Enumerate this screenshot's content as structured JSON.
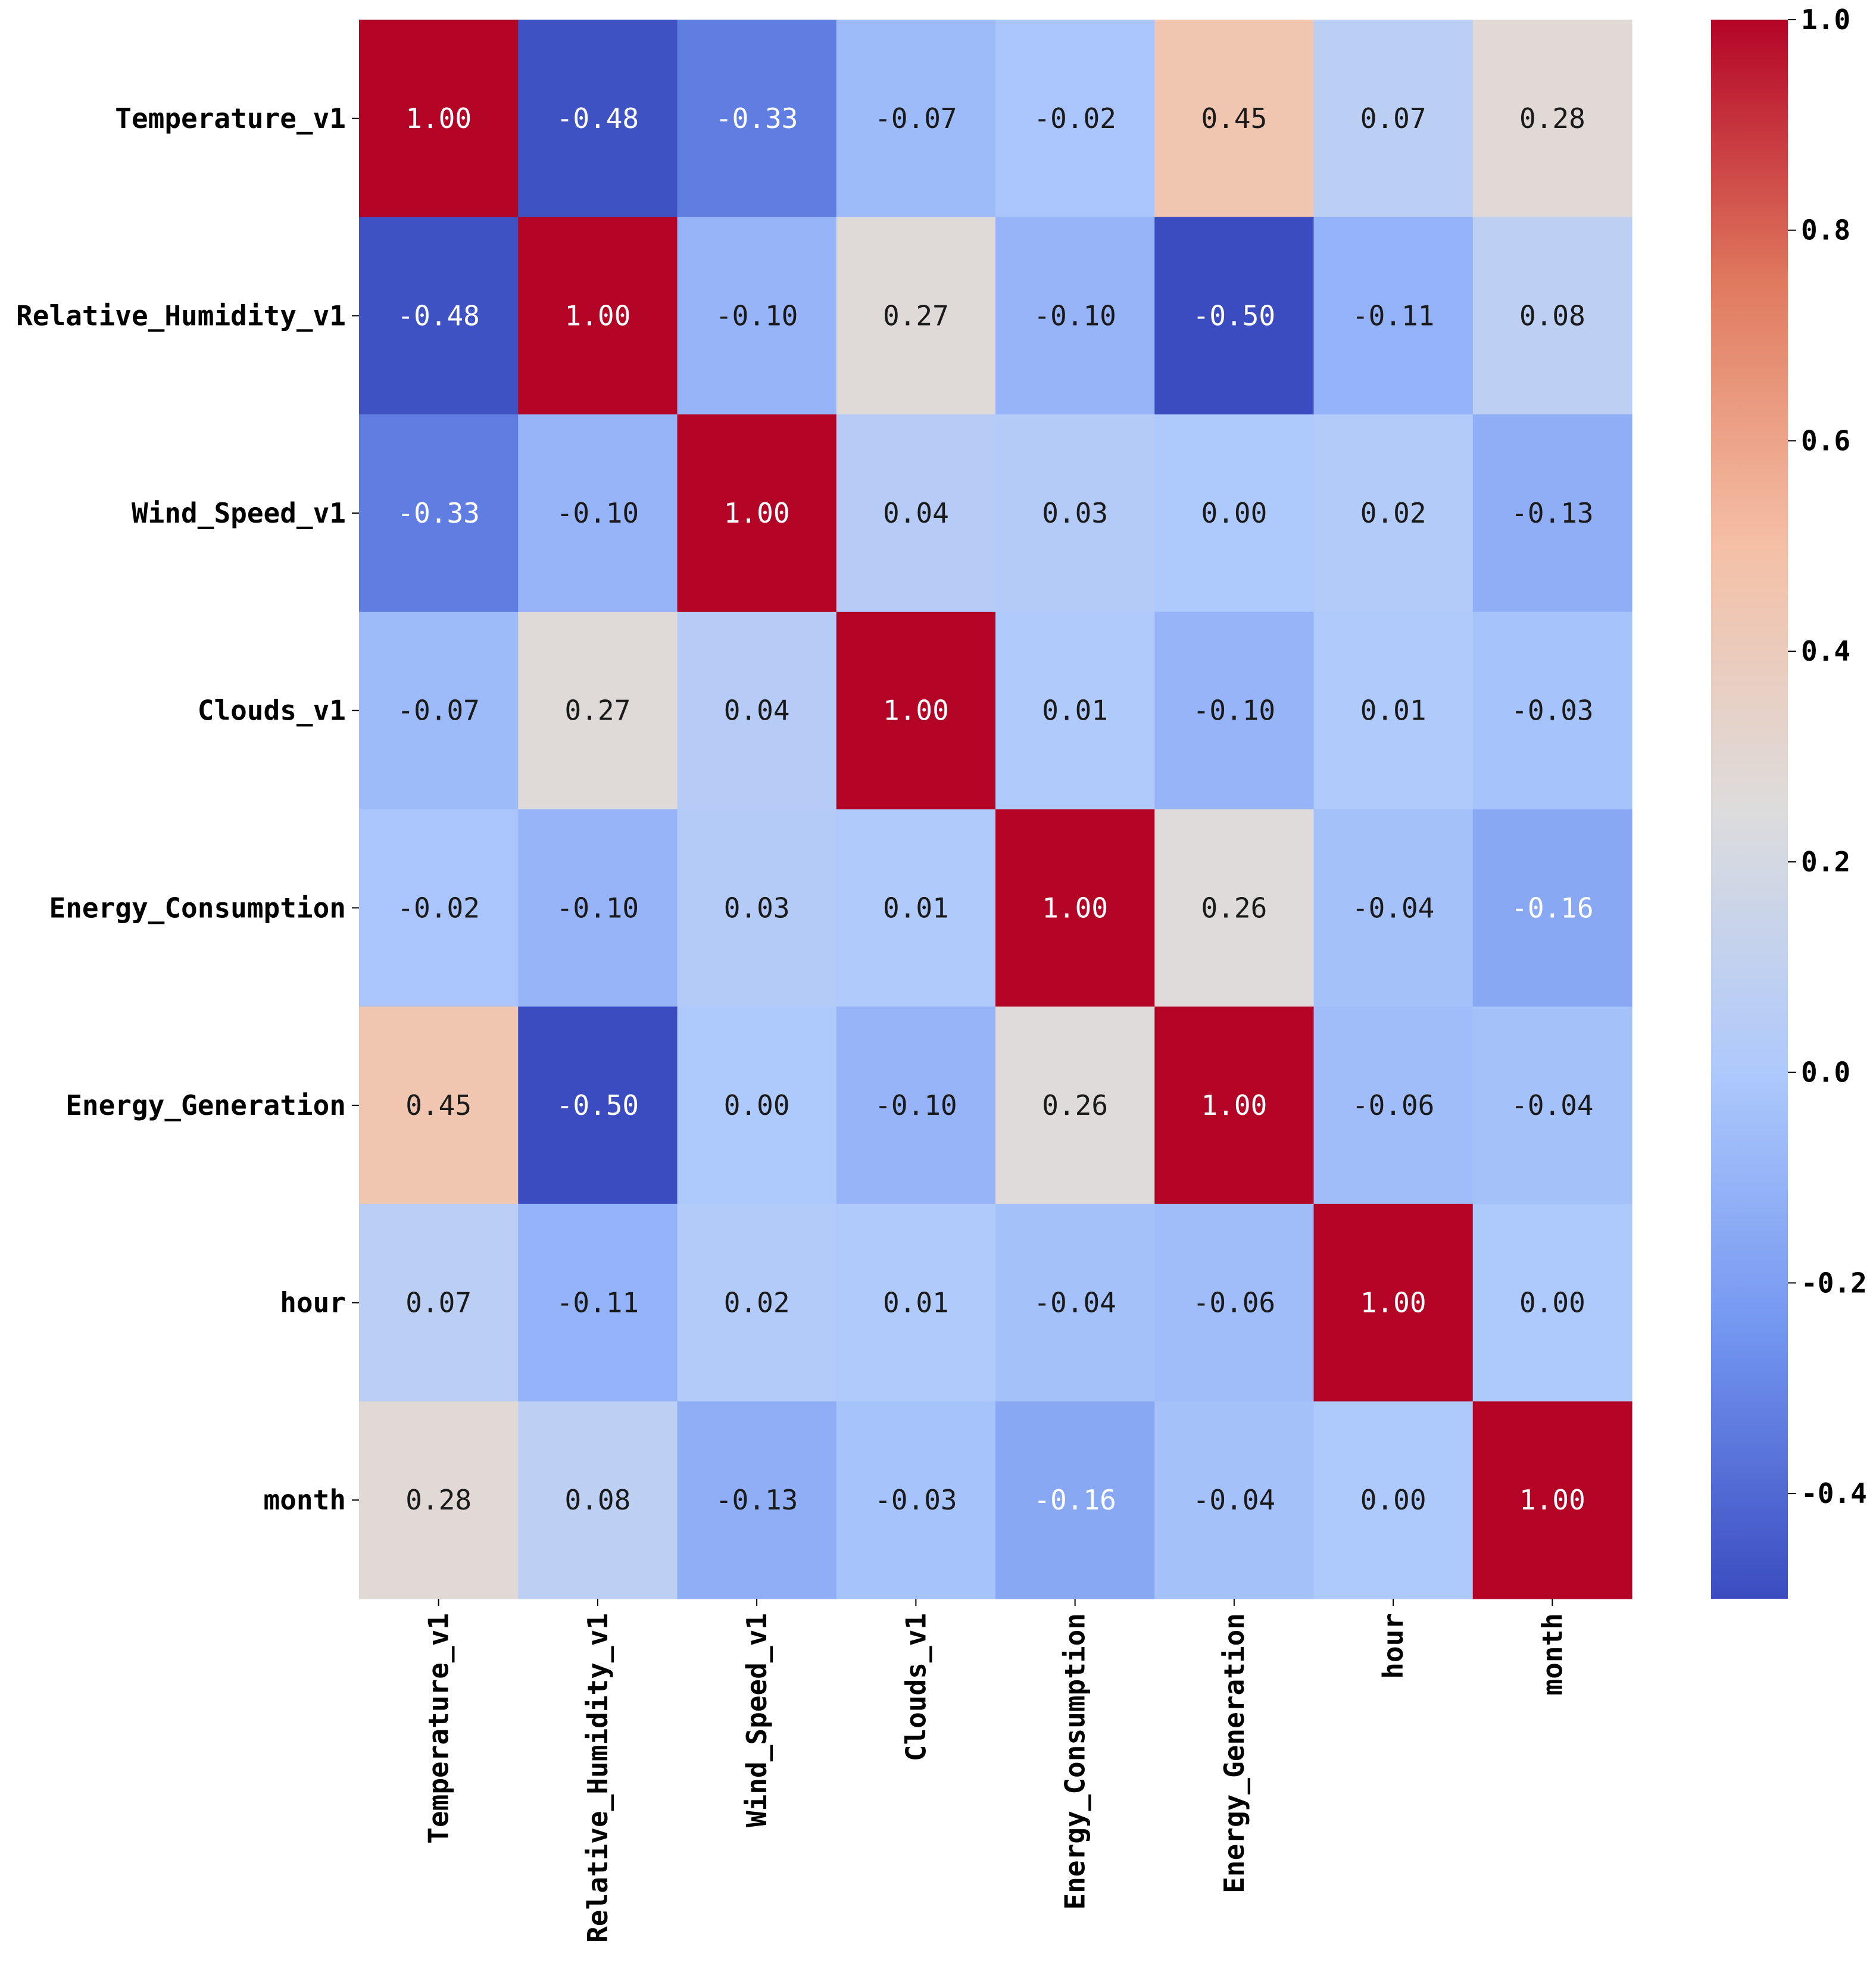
{
  "chart_data": {
    "type": "heatmap",
    "title": "",
    "xlabel": "",
    "ylabel": "",
    "row_labels": [
      "Temperature_v1",
      "Relative_Humidity_v1",
      "Wind_Speed_v1",
      "Clouds_v1",
      "Energy_Consumption",
      "Energy_Generation",
      "hour",
      "month"
    ],
    "col_labels": [
      "Temperature_v1",
      "Relative_Humidity_v1",
      "Wind_Speed_v1",
      "Clouds_v1",
      "Energy_Consumption",
      "Energy_Generation",
      "hour",
      "month"
    ],
    "values": [
      [
        1.0,
        -0.48,
        -0.33,
        -0.07,
        -0.02,
        0.45,
        0.07,
        0.28
      ],
      [
        -0.48,
        1.0,
        -0.1,
        0.27,
        -0.1,
        -0.5,
        -0.11,
        0.08
      ],
      [
        -0.33,
        -0.1,
        1.0,
        0.04,
        0.03,
        0.0,
        0.02,
        -0.13
      ],
      [
        -0.07,
        0.27,
        0.04,
        1.0,
        0.01,
        -0.1,
        0.01,
        -0.03
      ],
      [
        -0.02,
        -0.1,
        0.03,
        0.01,
        1.0,
        0.26,
        -0.04,
        -0.16
      ],
      [
        0.45,
        -0.5,
        0.0,
        -0.1,
        0.26,
        1.0,
        -0.06,
        -0.04
      ],
      [
        0.07,
        -0.11,
        0.02,
        0.01,
        -0.04,
        -0.06,
        1.0,
        0.0
      ],
      [
        0.28,
        0.08,
        -0.13,
        -0.03,
        -0.16,
        -0.04,
        0.0,
        1.0
      ]
    ],
    "cell_labels": [
      [
        "1.00",
        "-0.48",
        "-0.33",
        "-0.07",
        "-0.02",
        "0.45",
        "0.07",
        "0.28"
      ],
      [
        "-0.48",
        "1.00",
        "-0.10",
        "0.27",
        "-0.10",
        "-0.50",
        "-0.11",
        "0.08"
      ],
      [
        "-0.33",
        "-0.10",
        "1.00",
        "0.04",
        "0.03",
        "0.00",
        "0.02",
        "-0.13"
      ],
      [
        "-0.07",
        "0.27",
        "0.04",
        "1.00",
        "0.01",
        "-0.10",
        "0.01",
        "-0.03"
      ],
      [
        "-0.02",
        "-0.10",
        "0.03",
        "0.01",
        "1.00",
        "0.26",
        "-0.04",
        "-0.16"
      ],
      [
        "0.45",
        "-0.50",
        "0.00",
        "-0.10",
        "0.26",
        "1.00",
        "-0.06",
        "-0.04"
      ],
      [
        "0.07",
        "-0.11",
        "0.02",
        "0.01",
        "-0.04",
        "-0.06",
        "1.00",
        "0.00"
      ],
      [
        "0.28",
        "0.08",
        "-0.13",
        "-0.03",
        "-0.16",
        "-0.04",
        "0.00",
        "1.00"
      ]
    ],
    "colormap": "coolwarm",
    "colormap_stops": [
      {
        "value": -0.5,
        "color": "#3b4cc0"
      },
      {
        "value": -0.25,
        "color": "#7295f0"
      },
      {
        "value": 0.0,
        "color": "#aec9fc"
      },
      {
        "value": 0.25,
        "color": "#dddcdc"
      },
      {
        "value": 0.5,
        "color": "#f5c0a6"
      },
      {
        "value": 0.75,
        "color": "#e07a5f"
      },
      {
        "value": 1.0,
        "color": "#b40426"
      }
    ],
    "value_range": [
      -0.5,
      1.0
    ],
    "colorbar": {
      "ticks": [
        1.0,
        0.8,
        0.6,
        0.4,
        0.2,
        0.0,
        -0.2,
        -0.4
      ],
      "tick_labels": [
        "1.0",
        "0.8",
        "0.6",
        "0.4",
        "0.2",
        "0.0",
        "-0.2",
        "-0.4"
      ],
      "position": "right"
    }
  }
}
